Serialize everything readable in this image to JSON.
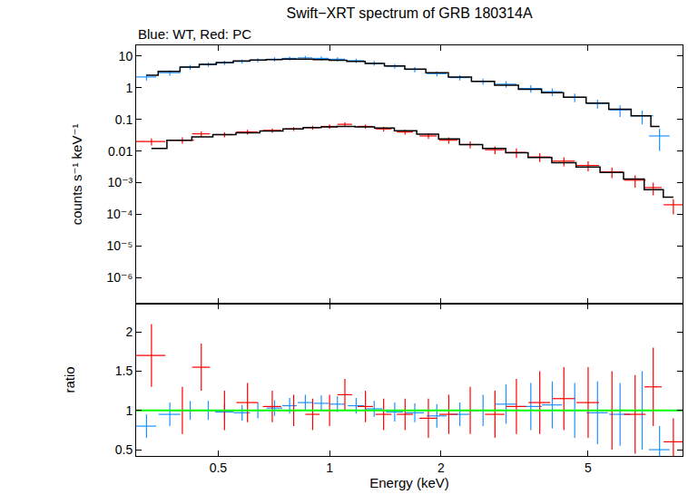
{
  "chart_data": [
    {
      "type": "scatter",
      "title": "Swift−XRT spectrum of GRB 180314A",
      "subtitle": "Blue: WT, Red: PC",
      "y_label": "counts s⁻¹ keV⁻¹",
      "log": true,
      "grid": false,
      "tick_labels": "y",
      "xlim": [
        0.3,
        9.0
      ],
      "xticks": [
        0.5,
        1,
        2,
        5
      ],
      "ylim": [
        1.5e-07,
        22
      ],
      "yticks": [
        10,
        1,
        0.1,
        0.01,
        {
          "value": 0.001,
          "label": "10⁻³"
        },
        {
          "value": 0.0001,
          "label": "10⁻⁴"
        },
        {
          "value": 1e-05,
          "label": "10⁻⁵"
        },
        {
          "value": 1e-06,
          "label": "10⁻⁶"
        }
      ],
      "series": [
        {
          "type": "scatter",
          "color": "#1e90ff",
          "marker": "none",
          "x": [
            0.32,
            0.37,
            0.42,
            0.47,
            0.52,
            0.58,
            0.64,
            0.71,
            0.78,
            0.86,
            0.95,
            1.05,
            1.18,
            1.32,
            1.5,
            1.7,
            1.95,
            2.25,
            2.6,
            3.0,
            3.5,
            4.0,
            4.6,
            5.3,
            6.1,
            7.0,
            7.8
          ],
          "xerror": [
            0.02,
            0.025,
            0.025,
            0.025,
            0.03,
            0.03,
            0.03,
            0.035,
            0.035,
            0.04,
            0.045,
            0.05,
            0.06,
            0.07,
            0.08,
            0.1,
            0.12,
            0.14,
            0.17,
            0.2,
            0.25,
            0.25,
            0.3,
            0.35,
            0.4,
            0.5,
            0.5
          ],
          "values": [
            2.2,
            3.0,
            4.5,
            5.5,
            6.2,
            6.8,
            7.5,
            8.0,
            8.5,
            8.8,
            8.5,
            8.0,
            7.2,
            6.0,
            4.8,
            3.8,
            2.8,
            2.1,
            1.6,
            1.3,
            0.95,
            0.75,
            0.5,
            0.32,
            0.2,
            0.13,
            0.03
          ],
          "error": [
            0.5,
            0.6,
            0.8,
            0.9,
            1.0,
            1.0,
            1.1,
            1.2,
            1.2,
            1.3,
            1.3,
            1.2,
            1.1,
            1.0,
            0.8,
            0.7,
            0.5,
            0.4,
            0.35,
            0.3,
            0.25,
            0.2,
            0.15,
            0.1,
            0.08,
            0.06,
            0.02
          ]
        },
        {
          "type": "line",
          "color": "#000000",
          "line_style": "steps",
          "x": [
            0.32,
            0.37,
            0.42,
            0.47,
            0.52,
            0.58,
            0.64,
            0.71,
            0.78,
            0.86,
            0.95,
            1.05,
            1.18,
            1.32,
            1.5,
            1.7,
            1.95,
            2.25,
            2.6,
            3.0,
            3.5,
            4.0,
            4.6,
            5.3,
            6.1,
            7.0,
            7.8
          ],
          "values": [
            2.5,
            3.3,
            4.5,
            5.5,
            6.3,
            7.0,
            7.5,
            7.8,
            8.0,
            8.0,
            7.8,
            7.4,
            6.8,
            5.9,
            4.9,
            3.9,
            3.0,
            2.2,
            1.6,
            1.2,
            0.9,
            0.7,
            0.5,
            0.33,
            0.21,
            0.13,
            0.06
          ]
        },
        {
          "type": "scatter",
          "color": "#ff0000",
          "marker": "none",
          "x": [
            0.33,
            0.4,
            0.45,
            0.52,
            0.6,
            0.7,
            0.8,
            0.9,
            1.0,
            1.1,
            1.25,
            1.4,
            1.6,
            1.85,
            2.1,
            2.4,
            2.8,
            3.2,
            3.7,
            4.3,
            5.0,
            5.8,
            6.7,
            7.5,
            8.5
          ],
          "xerror": [
            0.03,
            0.03,
            0.025,
            0.03,
            0.04,
            0.04,
            0.04,
            0.04,
            0.05,
            0.05,
            0.06,
            0.07,
            0.08,
            0.1,
            0.12,
            0.14,
            0.17,
            0.2,
            0.25,
            0.3,
            0.35,
            0.4,
            0.45,
            0.4,
            0.5
          ],
          "values": [
            0.02,
            0.022,
            0.035,
            0.033,
            0.04,
            0.045,
            0.05,
            0.055,
            0.06,
            0.07,
            0.06,
            0.05,
            0.04,
            0.03,
            0.022,
            0.016,
            0.011,
            0.009,
            0.0065,
            0.0048,
            0.0035,
            0.0022,
            0.0012,
            0.0007,
            0.0002
          ],
          "error": [
            0.005,
            0.005,
            0.007,
            0.006,
            0.007,
            0.007,
            0.007,
            0.008,
            0.009,
            0.01,
            0.009,
            0.008,
            0.007,
            0.006,
            0.005,
            0.004,
            0.003,
            0.003,
            0.002,
            0.0015,
            0.0012,
            0.0008,
            0.0005,
            0.0003,
            0.0001
          ]
        },
        {
          "type": "line",
          "color": "#000000",
          "line_style": "steps",
          "x": [
            0.33,
            0.4,
            0.45,
            0.52,
            0.6,
            0.7,
            0.8,
            0.9,
            1.0,
            1.1,
            1.25,
            1.4,
            1.6,
            1.85,
            2.1,
            2.4,
            2.8,
            3.2,
            3.7,
            4.3,
            5.0,
            5.8,
            6.7,
            7.5,
            8.5
          ],
          "values": [
            0.012,
            0.022,
            0.028,
            0.033,
            0.038,
            0.043,
            0.05,
            0.055,
            0.058,
            0.06,
            0.058,
            0.053,
            0.044,
            0.034,
            0.024,
            0.016,
            0.012,
            0.0088,
            0.0062,
            0.0043,
            0.0031,
            0.0021,
            0.0013,
            0.0006,
            0.00035
          ]
        }
      ]
    },
    {
      "type": "scatter",
      "x_label": "Energy (keV)",
      "y_label": "ratio",
      "log": "x",
      "grid": false,
      "xlim": [
        0.3,
        9.0
      ],
      "xticks": [
        0.5,
        1,
        2,
        5
      ],
      "ylim": [
        0.42,
        2.36
      ],
      "yticks": [
        0.5,
        1,
        1.5,
        2
      ],
      "series": [
        {
          "type": "scatter",
          "color": "#1e90ff",
          "marker": "none",
          "x": [
            0.32,
            0.37,
            0.42,
            0.47,
            0.52,
            0.58,
            0.64,
            0.71,
            0.78,
            0.86,
            0.95,
            1.05,
            1.18,
            1.32,
            1.5,
            1.7,
            1.95,
            2.25,
            2.6,
            3.0,
            3.5,
            4.0,
            4.6,
            5.3,
            6.1,
            7.0,
            7.8
          ],
          "xerror": [
            0.02,
            0.025,
            0.025,
            0.025,
            0.03,
            0.03,
            0.03,
            0.035,
            0.035,
            0.04,
            0.045,
            0.05,
            0.06,
            0.07,
            0.08,
            0.1,
            0.12,
            0.14,
            0.17,
            0.2,
            0.25,
            0.25,
            0.3,
            0.35,
            0.4,
            0.5,
            0.5
          ],
          "values": [
            0.8,
            0.95,
            1.0,
            1.0,
            0.98,
            0.97,
            1.0,
            1.03,
            1.06,
            1.1,
            1.09,
            1.08,
            1.06,
            1.02,
            0.98,
            0.97,
            0.93,
            0.95,
            1.0,
            1.08,
            1.05,
            1.07,
            1.0,
            0.97,
            0.95,
            1.0,
            0.5
          ],
          "error": [
            0.15,
            0.15,
            0.12,
            0.12,
            0.1,
            0.1,
            0.1,
            0.1,
            0.1,
            0.1,
            0.1,
            0.1,
            0.1,
            0.1,
            0.12,
            0.12,
            0.15,
            0.15,
            0.2,
            0.25,
            0.3,
            0.3,
            0.35,
            0.4,
            0.4,
            0.5,
            0.3
          ]
        },
        {
          "type": "scatter",
          "color": "#ff0000",
          "marker": "none",
          "x": [
            0.33,
            0.4,
            0.45,
            0.52,
            0.6,
            0.7,
            0.8,
            0.9,
            1.0,
            1.1,
            1.25,
            1.4,
            1.6,
            1.85,
            2.1,
            2.4,
            2.8,
            3.2,
            3.7,
            4.3,
            5.0,
            5.8,
            6.7,
            7.5,
            8.5
          ],
          "xerror": [
            0.03,
            0.03,
            0.025,
            0.03,
            0.04,
            0.04,
            0.04,
            0.04,
            0.05,
            0.05,
            0.06,
            0.07,
            0.08,
            0.1,
            0.12,
            0.14,
            0.17,
            0.2,
            0.25,
            0.3,
            0.35,
            0.4,
            0.45,
            0.4,
            0.5
          ],
          "values": [
            1.7,
            1.0,
            1.55,
            1.0,
            1.1,
            1.05,
            1.0,
            0.95,
            1.0,
            1.2,
            1.05,
            0.95,
            0.95,
            0.9,
            0.95,
            1.0,
            0.95,
            1.05,
            1.1,
            1.15,
            1.1,
            1.0,
            0.95,
            1.3,
            0.6
          ],
          "error": [
            0.4,
            0.3,
            0.3,
            0.25,
            0.25,
            0.2,
            0.2,
            0.2,
            0.2,
            0.2,
            0.2,
            0.2,
            0.2,
            0.25,
            0.25,
            0.3,
            0.3,
            0.35,
            0.4,
            0.4,
            0.45,
            0.5,
            0.5,
            0.5,
            0.3
          ]
        },
        {
          "type": "line",
          "color": "#00ff00",
          "line_style": "solid",
          "x": [
            0.3,
            9.0
          ],
          "values": [
            1,
            1
          ]
        }
      ]
    }
  ]
}
